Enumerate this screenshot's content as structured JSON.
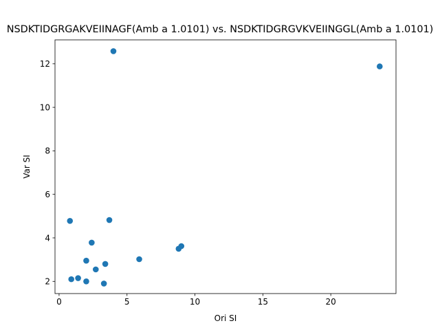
{
  "chart_data": {
    "type": "scatter",
    "title": "NSDKTIDGRGAKVEIINAGF(Amb a 1.0101) vs. NSDKTIDGRGVKVEIINGGL(Amb a 1.0101)",
    "xlabel": "Ori SI",
    "ylabel": "Var SI",
    "xlim": [
      -0.3,
      24.8
    ],
    "ylim": [
      1.44,
      13.1
    ],
    "xticks": [
      0,
      5,
      10,
      15,
      20
    ],
    "yticks": [
      2,
      4,
      6,
      8,
      10,
      12
    ],
    "grid": false,
    "color": "#1f77b4",
    "points": [
      {
        "x": 4.0,
        "y": 12.58
      },
      {
        "x": 23.6,
        "y": 11.88
      },
      {
        "x": 0.8,
        "y": 4.78
      },
      {
        "x": 3.7,
        "y": 4.82
      },
      {
        "x": 2.4,
        "y": 3.78
      },
      {
        "x": 9.0,
        "y": 3.62
      },
      {
        "x": 8.8,
        "y": 3.5
      },
      {
        "x": 5.9,
        "y": 3.02
      },
      {
        "x": 2.0,
        "y": 2.95
      },
      {
        "x": 3.4,
        "y": 2.8
      },
      {
        "x": 2.7,
        "y": 2.55
      },
      {
        "x": 1.4,
        "y": 2.15
      },
      {
        "x": 0.9,
        "y": 2.1
      },
      {
        "x": 2.0,
        "y": 2.0
      },
      {
        "x": 3.3,
        "y": 1.9
      }
    ]
  }
}
